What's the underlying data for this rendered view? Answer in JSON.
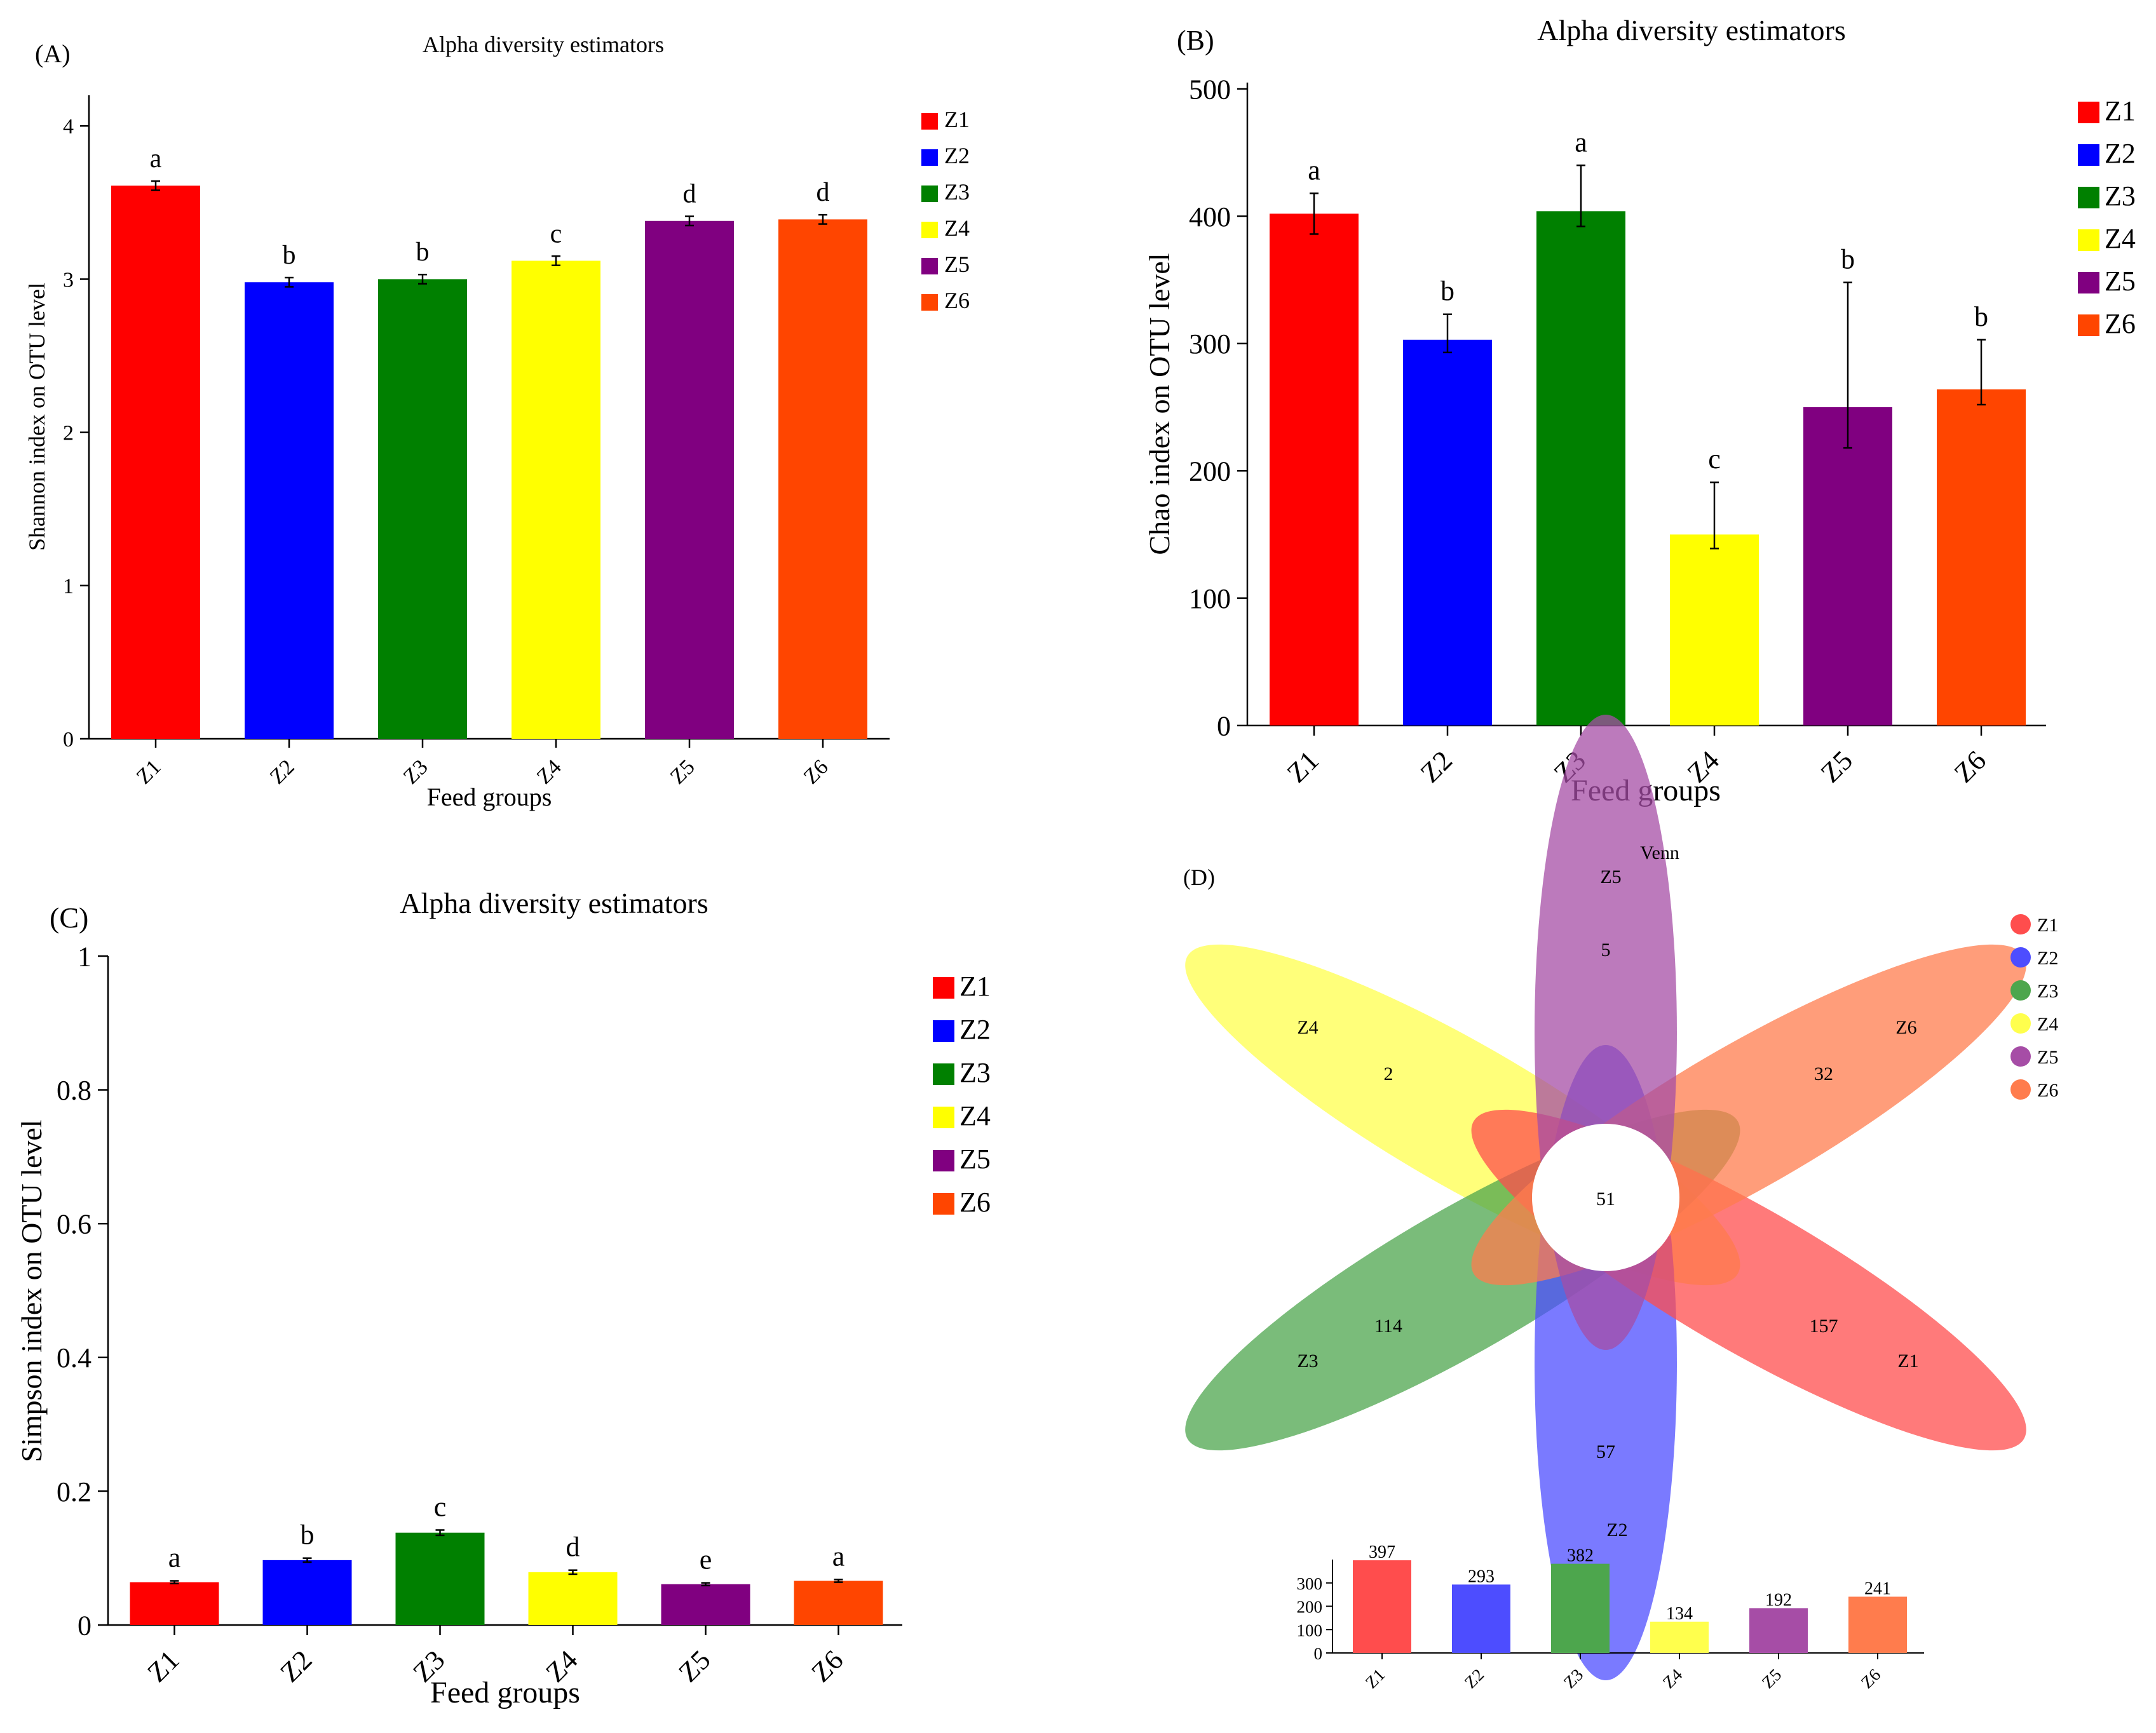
{
  "colors": {
    "Z1": "#ff0000",
    "Z2": "#0000ff",
    "Z3": "#008000",
    "Z4": "#ffff00",
    "Z5": "#800080",
    "Z6": "#ff4500",
    "venn": {
      "Z1": "#ff4d4d",
      "Z2": "#4d4dff",
      "Z3": "#4da64d",
      "Z4": "#ffff4d",
      "Z5": "#a64da6",
      "Z6": "#ff7c4d"
    }
  },
  "panels": {
    "A": {
      "label": "(A)"
    },
    "B": {
      "label": "(B)"
    },
    "C": {
      "label": "(C)"
    },
    "D": {
      "label": "(D)"
    }
  },
  "chart_data": [
    {
      "id": "A",
      "type": "bar",
      "title": "Alpha diversity estimators",
      "xlabel": "Feed groups",
      "ylabel": "Shannon index on OTU level",
      "categories": [
        "Z1",
        "Z2",
        "Z3",
        "Z4",
        "Z5",
        "Z6"
      ],
      "values": [
        3.61,
        2.98,
        3.0,
        3.12,
        3.38,
        3.39
      ],
      "errors": [
        0.03,
        0.03,
        0.03,
        0.03,
        0.03,
        0.03
      ],
      "significance": [
        "a",
        "b",
        "b",
        "c",
        "d",
        "d"
      ],
      "ylim": [
        0,
        4.2
      ],
      "yticks": [
        0,
        1,
        2,
        3,
        4
      ],
      "legend": [
        "Z1",
        "Z2",
        "Z3",
        "Z4",
        "Z5",
        "Z6"
      ],
      "legend_position": "right"
    },
    {
      "id": "B",
      "type": "bar",
      "title": "Alpha diversity estimators",
      "xlabel": "Feed groups",
      "ylabel": "Chao index on OTU level",
      "categories": [
        "Z1",
        "Z2",
        "Z3",
        "Z4",
        "Z5",
        "Z6"
      ],
      "values": [
        402,
        303,
        404,
        150,
        250,
        264
      ],
      "error_low": [
        386,
        293,
        392,
        139,
        218,
        252
      ],
      "error_high": [
        418,
        323,
        440,
        191,
        348,
        303
      ],
      "significance": [
        "a",
        "b",
        "a",
        "c",
        "b",
        "b"
      ],
      "ylim": [
        0,
        505
      ],
      "yticks": [
        0,
        100,
        200,
        300,
        400,
        500
      ],
      "legend": [
        "Z1",
        "Z2",
        "Z3",
        "Z4",
        "Z5",
        "Z6"
      ],
      "legend_position": "right"
    },
    {
      "id": "C",
      "type": "bar",
      "title": "Alpha diversity estimators",
      "xlabel": "Feed groups",
      "ylabel": "Simpson index on OTU level",
      "categories": [
        "Z1",
        "Z2",
        "Z3",
        "Z4",
        "Z5",
        "Z6"
      ],
      "values": [
        0.064,
        0.097,
        0.138,
        0.079,
        0.061,
        0.066
      ],
      "errors": [
        0.002,
        0.003,
        0.004,
        0.003,
        0.002,
        0.002
      ],
      "significance": [
        "a",
        "b",
        "c",
        "d",
        "e",
        "a"
      ],
      "ylim": [
        0,
        1
      ],
      "yticks": [
        "0",
        "0.2",
        "0.4",
        "0.6",
        "0.8",
        "1"
      ],
      "legend": [
        "Z1",
        "Z2",
        "Z3",
        "Z4",
        "Z5",
        "Z6"
      ],
      "legend_position": "right"
    },
    {
      "id": "D",
      "type": "venn",
      "title": "Venn",
      "sets": [
        "Z1",
        "Z2",
        "Z3",
        "Z4",
        "Z5",
        "Z6"
      ],
      "unique_counts": {
        "Z1": 157,
        "Z2": 57,
        "Z3": 114,
        "Z4": 2,
        "Z5": 5,
        "Z6": 32
      },
      "core_count": 51,
      "legend": [
        "Z1",
        "Z2",
        "Z3",
        "Z4",
        "Z5",
        "Z6"
      ],
      "legend_position": "right",
      "totals_bar": {
        "type": "bar",
        "categories": [
          "Z1",
          "Z2",
          "Z3",
          "Z4",
          "Z5",
          "Z6"
        ],
        "values": [
          397,
          293,
          382,
          134,
          192,
          241
        ],
        "ylim": [
          0,
          400
        ],
        "yticks": [
          0,
          100,
          200,
          300
        ]
      }
    }
  ]
}
